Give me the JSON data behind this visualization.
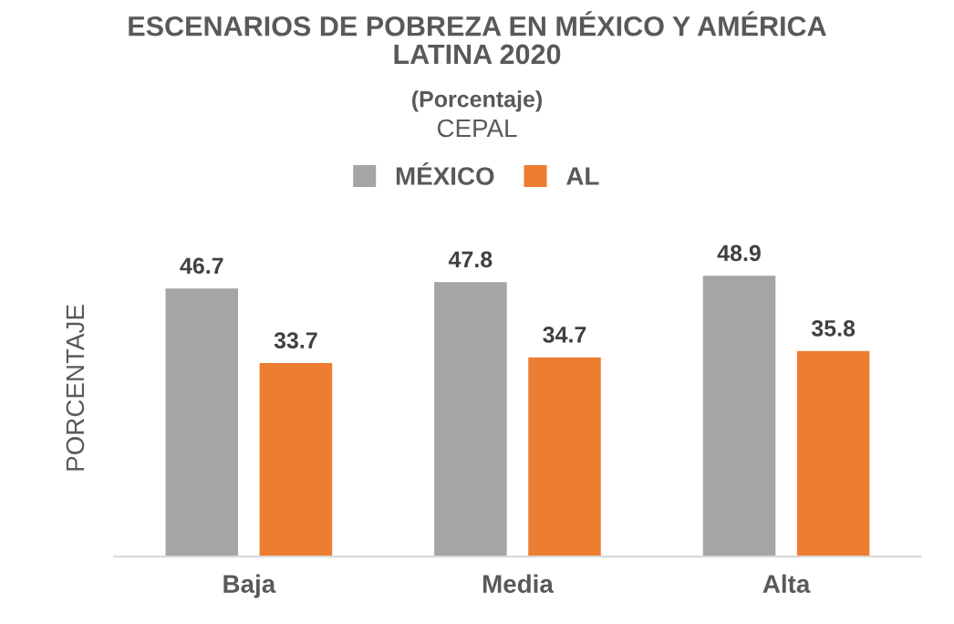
{
  "chart_data": {
    "type": "bar",
    "title": "ESCENARIOS DE POBREZA EN MÉXICO Y AMÉRICA\nLATINA 2020",
    "subtitle": "(Porcentaje)",
    "annotations": [
      "CEPAL"
    ],
    "ylabel": "PORCENTAJE",
    "categories": [
      "Baja",
      "Media",
      "Alta"
    ],
    "series": [
      {
        "name": "MÉXICO",
        "color": "#a5a5a5",
        "values": [
          46.7,
          47.8,
          48.9
        ]
      },
      {
        "name": "AL",
        "color": "#ed7d31",
        "values": [
          33.7,
          34.7,
          35.8
        ]
      }
    ],
    "data_labels": true,
    "tick_labels": "x",
    "grid": false,
    "legend": "top"
  }
}
